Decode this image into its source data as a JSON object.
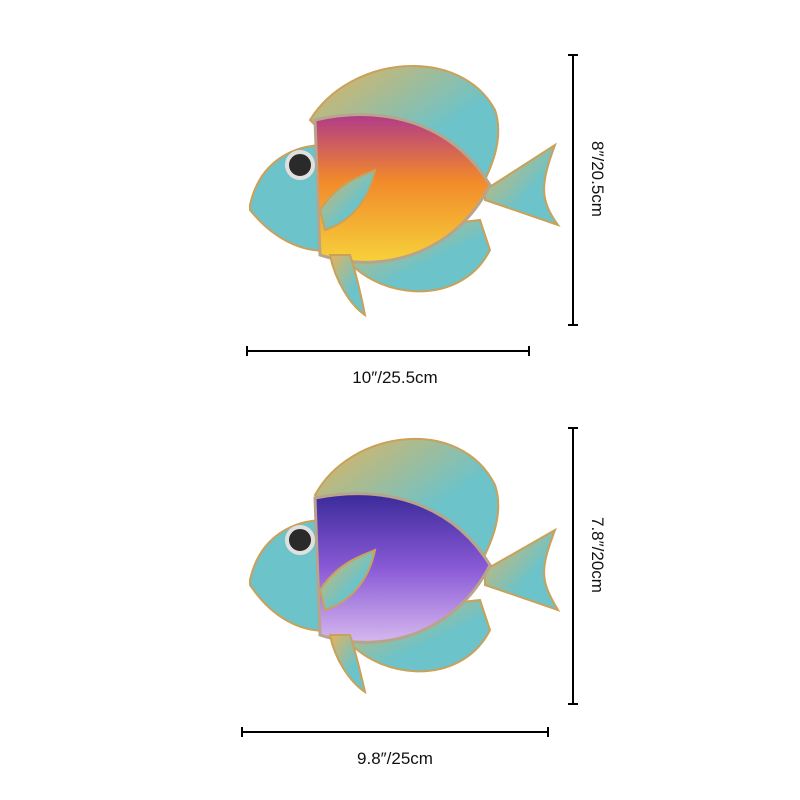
{
  "products": [
    {
      "name": "orange-yellow-fish",
      "width_label": "10″/25.5cm",
      "height_label": "8″/20.5cm",
      "colors": {
        "body_top": "#b03a8a",
        "body_mid": "#f28a2a",
        "body_bottom": "#f6d23a",
        "fin": "#6cc3c9",
        "fin_edge": "#e6b35a"
      }
    },
    {
      "name": "purple-fish",
      "width_label": "9.8″/25cm",
      "height_label": "7.8″/20cm",
      "colors": {
        "body_top": "#3a2a9a",
        "body_mid": "#8a5ad6",
        "body_bottom": "#d6b8ee",
        "fin": "#6cc3c9",
        "fin_edge": "#e6b35a"
      }
    }
  ]
}
